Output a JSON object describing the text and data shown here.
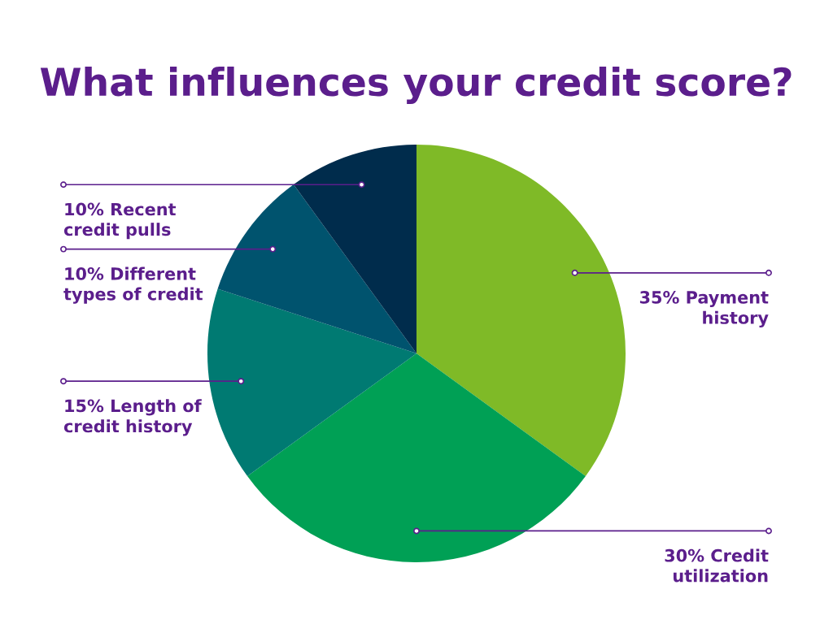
{
  "chart_data": {
    "type": "pie",
    "title": "What influences your credit score?",
    "categories": [
      "Payment history",
      "Credit utilization",
      "Length of credit history",
      "Different types of credit",
      "Recent credit pulls"
    ],
    "values": [
      35,
      30,
      15,
      10,
      10
    ],
    "value_labels": [
      "35%",
      "30%",
      "15%",
      "10%",
      "10%"
    ],
    "colors": [
      "#7fba27",
      "#00a055",
      "#007a72",
      "#00536e",
      "#002c4c"
    ]
  }
}
